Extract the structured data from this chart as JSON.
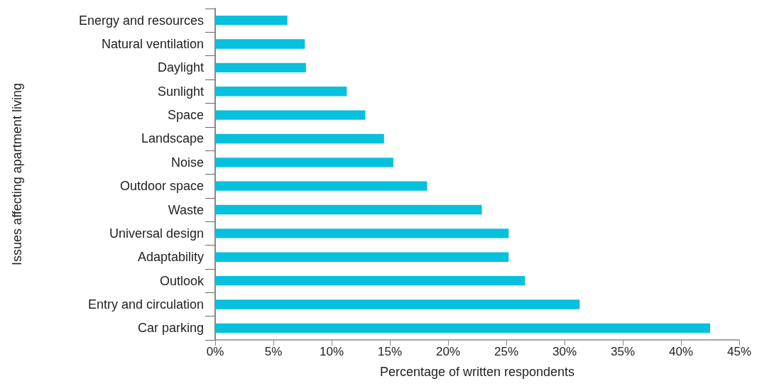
{
  "chart_data": {
    "type": "bar",
    "orientation": "horizontal",
    "categories": [
      "Energy and resources",
      "Natural ventilation",
      "Daylight",
      "Sunlight",
      "Space",
      "Landscape",
      "Noise",
      "Outdoor space",
      "Waste",
      "Universal design",
      "Adaptability",
      "Outlook",
      "Entry and circulation",
      "Car parking"
    ],
    "values": [
      6.2,
      7.7,
      7.8,
      11.3,
      12.9,
      14.5,
      15.3,
      18.2,
      22.9,
      25.2,
      25.2,
      26.6,
      31.3,
      42.5
    ],
    "color": "#05c1de",
    "xlabel": "Percentage of written respondents",
    "ylabel": "Issues affecting apartment living",
    "xlim": [
      0,
      45
    ],
    "xticks": [
      {
        "value": 0,
        "label": "0%"
      },
      {
        "value": 5,
        "label": "5%"
      },
      {
        "value": 10,
        "label": "10%"
      },
      {
        "value": 15,
        "label": "15%"
      },
      {
        "value": 20,
        "label": "20%"
      },
      {
        "value": 25,
        "label": "25%"
      },
      {
        "value": 30,
        "label": "30%"
      },
      {
        "value": 35,
        "label": "35%"
      },
      {
        "value": 40,
        "label": "40%"
      },
      {
        "value": 45,
        "label": "45%"
      }
    ],
    "grid": false
  }
}
